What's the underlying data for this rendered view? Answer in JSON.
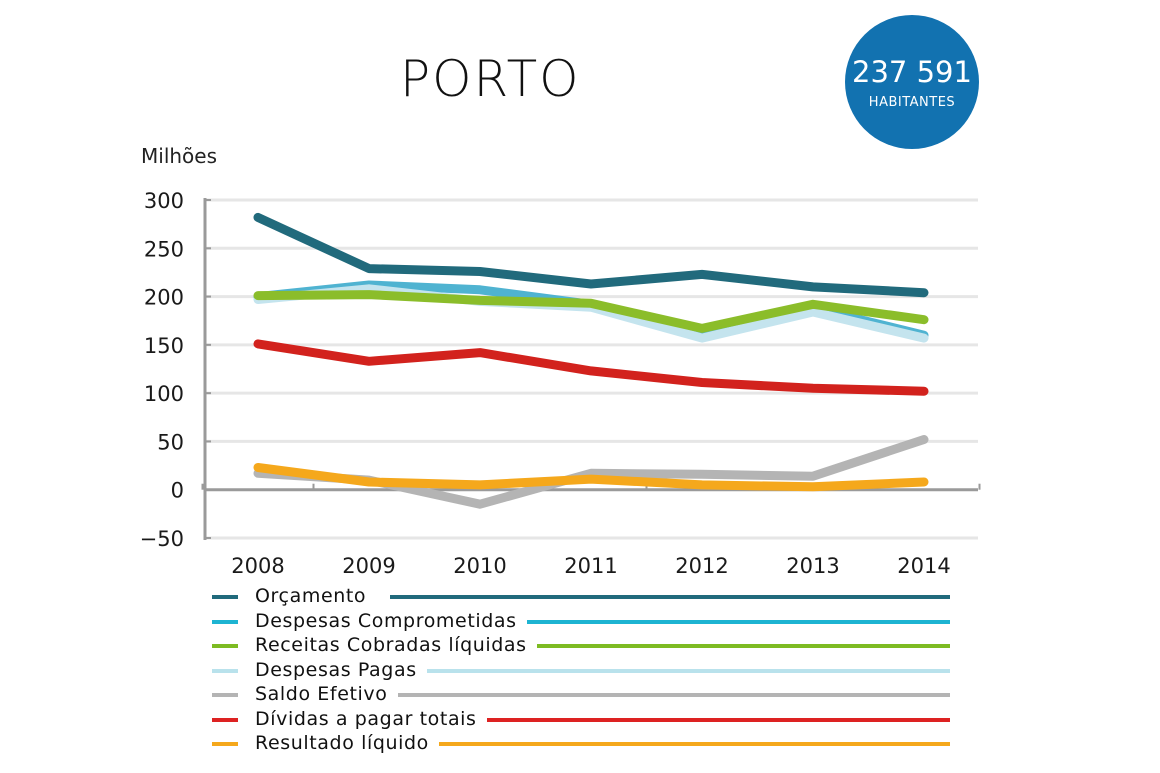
{
  "header": {
    "title": "PORTO",
    "population_value": "237 591",
    "population_label": "HABITANTES",
    "badge_color": "#1272b0"
  },
  "chart_data": {
    "type": "line",
    "title": "PORTO",
    "ylabel": "Milhões",
    "xlabel": "",
    "x": [
      "2008",
      "2009",
      "2010",
      "2011",
      "2012",
      "2013",
      "2014"
    ],
    "ylim": [
      -50,
      300
    ],
    "yticks": [
      "300",
      "250",
      "200",
      "150",
      "100",
      "50",
      "0",
      "−50"
    ],
    "ytick_values": [
      300,
      250,
      200,
      150,
      100,
      50,
      0,
      -50
    ],
    "grid": true,
    "legend_position": "bottom",
    "series": [
      {
        "name": "Orçamento",
        "color": "#216a7c",
        "values": [
          282,
          229,
          226,
          213,
          223,
          210,
          204
        ]
      },
      {
        "name": "Despesas Comprometidas",
        "color": "#4fb3d1",
        "values": [
          200,
          212,
          207,
          192,
          162,
          188,
          160
        ]
      },
      {
        "name": "Receitas Cobradas líquidas",
        "color": "#8bbd2a",
        "values": [
          201,
          202,
          196,
          193,
          167,
          192,
          176
        ]
      },
      {
        "name": "Despesas Pagas",
        "color": "#c4e4ee",
        "values": [
          197,
          208,
          195,
          189,
          157,
          184,
          157
        ]
      },
      {
        "name": "Saldo Efetivo",
        "color": "#b4b4b4",
        "values": [
          17,
          10,
          -15,
          17,
          16,
          14,
          52
        ]
      },
      {
        "name": "Dívidas a pagar totais",
        "color": "#d2221d",
        "values": [
          151,
          133,
          142,
          123,
          111,
          105,
          102
        ]
      },
      {
        "name": "Resultado líquido",
        "color": "#f5a81c",
        "values": [
          23,
          8,
          5,
          11,
          5,
          3,
          8
        ]
      }
    ]
  },
  "legend_colors": {
    "Orçamento": "#216a7c",
    "Despesas Comprometidas": "#1db4d2",
    "Receitas Cobradas líquidas": "#7dbb22",
    "Despesas Pagas": "#b9e2ec",
    "Saldo Efetivo": "#b4b4b4",
    "Dívidas a pagar totais": "#dd2222",
    "Resultado líquido": "#f5a81c"
  }
}
